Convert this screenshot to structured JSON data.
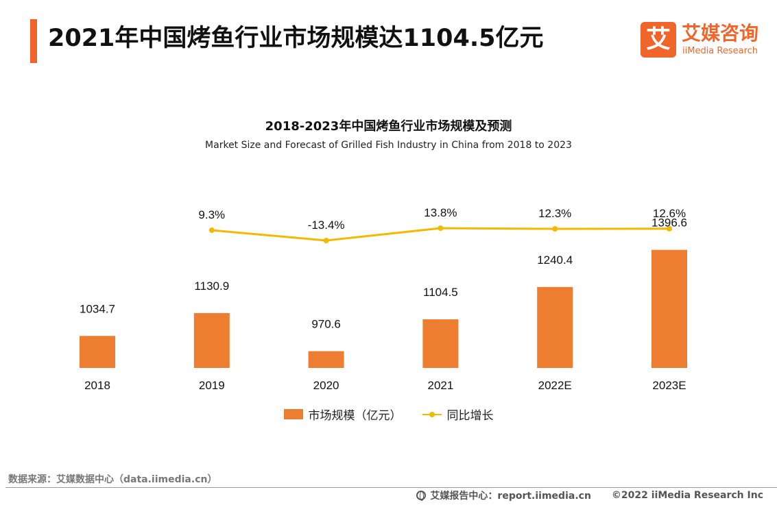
{
  "header": {
    "title": "2021年中国烤鱼行业市场规模达1104.5亿元",
    "logo_mark": "艾",
    "logo_cn": "艾媒咨询",
    "logo_en": "iiMedia Research"
  },
  "colors": {
    "accent": "#f0652a",
    "bar": "#ed7d31",
    "line": "#f5b800"
  },
  "chart_data": {
    "type": "bar",
    "title": "2018-2023年中国烤鱼行业市场规模及预测",
    "subtitle": "Market Size and Forecast of Grilled Fish Industry in China from 2018 to 2023",
    "categories": [
      "2018",
      "2019",
      "2020",
      "2021",
      "2022E",
      "2023E"
    ],
    "series": [
      {
        "name": "市场规模（亿元）",
        "type": "bar",
        "values": [
          1034.7,
          1130.9,
          970.6,
          1104.5,
          1240.4,
          1396.6
        ],
        "labels": [
          "1034.7",
          "1130.9",
          "970.6",
          "1104.5",
          "1240.4",
          "1396.6"
        ]
      },
      {
        "name": "同比增长",
        "type": "line",
        "values": [
          null,
          9.3,
          -13.4,
          13.8,
          12.3,
          12.6
        ],
        "labels": [
          "",
          "9.3%",
          "-13.4%",
          "13.8%",
          "12.3%",
          "12.6%"
        ]
      }
    ],
    "legend": "bottom-center",
    "grid": false
  },
  "footer": {
    "source": "数据来源：艾媒数据中心（data.iimedia.cn）",
    "report": "艾媒报告中心：report.iimedia.cn",
    "copyright": "©2022  iiMedia Research  Inc"
  }
}
